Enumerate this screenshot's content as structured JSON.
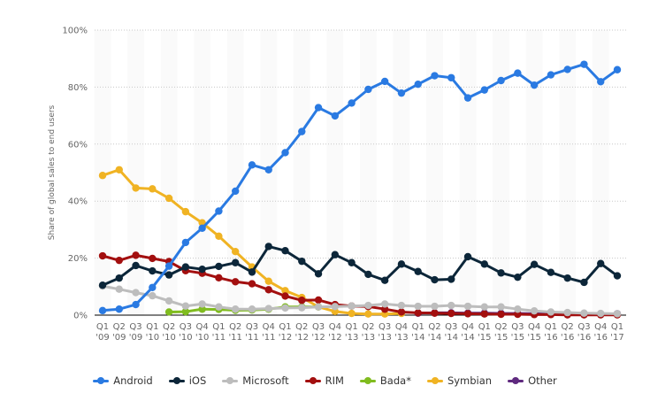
{
  "chart_data": {
    "type": "line",
    "title": "",
    "xlabel": "",
    "ylabel": "Share of global sales to end users",
    "ylim": [
      0,
      100
    ],
    "yticks": [
      "0%",
      "20%",
      "40%",
      "60%",
      "80%",
      "100%"
    ],
    "grid": true,
    "legend_position": "bottom",
    "categories": [
      "Q1 '09",
      "Q2 '09",
      "Q3 '09",
      "Q1 '10",
      "Q2 '10",
      "Q3 '10",
      "Q4 '10",
      "Q1 '11",
      "Q2 '11",
      "Q3 '11",
      "Q4 '11",
      "Q1 '12",
      "Q2 '12",
      "Q3 '12",
      "Q4 '12",
      "Q1 '13",
      "Q2 '13",
      "Q3 '13",
      "Q4 '13",
      "Q1 '14",
      "Q2 '14",
      "Q3 '14",
      "Q4 '14",
      "Q1 '15",
      "Q2 '15",
      "Q3 '15",
      "Q4 '15",
      "Q1 '16",
      "Q2 '16",
      "Q3 '16",
      "Q4 '16",
      "Q1 '17"
    ],
    "series": [
      {
        "name": "Android",
        "color": "#2a7ae2",
        "values": [
          1.6,
          2.1,
          3.7,
          9.7,
          17.2,
          25.5,
          30.5,
          36.5,
          43.5,
          52.7,
          51,
          57,
          64.4,
          72.8,
          69.9,
          74.4,
          79.2,
          82,
          77.9,
          81,
          84,
          83.3,
          76.2,
          79,
          82.3,
          84.9,
          80.7,
          84.3,
          86.2,
          88,
          81.9,
          86.1
        ]
      },
      {
        "name": "iOS",
        "color": "#0c2639",
        "values": [
          10.5,
          13,
          17.4,
          15.5,
          14.1,
          16.9,
          16.1,
          17.1,
          18.4,
          15.1,
          24.1,
          22.6,
          18.9,
          14.5,
          21.2,
          18.4,
          14.3,
          12.2,
          17.9,
          15.3,
          12.4,
          12.6,
          20.5,
          17.9,
          14.8,
          13.3,
          17.8,
          15,
          13,
          11.5,
          18.1,
          13.8
        ]
      },
      {
        "name": "Microsoft",
        "color": "#bdbdbd",
        "values": [
          10.2,
          9.1,
          7.9,
          6.8,
          5,
          3.2,
          3.9,
          2.9,
          2.1,
          2.1,
          2.3,
          2.5,
          2.6,
          2.9,
          3,
          3.2,
          3.4,
          3.9,
          3.4,
          3.1,
          3.1,
          3.4,
          3.1,
          2.9,
          2.9,
          2.1,
          1.5,
          1.1,
          0.9,
          0.7,
          0.6,
          0.5
        ]
      },
      {
        "name": "RIM",
        "color": "#a30f0f",
        "values": [
          20.8,
          19.2,
          21,
          19.9,
          18.8,
          15.6,
          14.7,
          13.1,
          11.7,
          11,
          8.9,
          6.7,
          5.2,
          5.3,
          3.7,
          3.2,
          3,
          2.1,
          1.1,
          0.8,
          0.7,
          0.6,
          0.5,
          0.4,
          0.3,
          0.3,
          0.2,
          0.2,
          0.1,
          0.1,
          0.1,
          0.1
        ]
      },
      {
        "name": "Bada*",
        "color": "#80bc1f",
        "values": [
          null,
          null,
          null,
          null,
          1.1,
          1.2,
          2.1,
          2,
          1.7,
          1.8,
          2.1,
          2.9,
          2.9,
          2.9,
          null,
          null,
          null,
          null,
          null,
          null,
          null,
          null,
          null,
          null,
          null,
          null,
          null,
          null,
          null,
          null,
          null,
          null
        ]
      },
      {
        "name": "Symbian",
        "color": "#f0b323",
        "values": [
          49,
          51,
          44.6,
          44.3,
          41,
          36.3,
          32.4,
          27.7,
          22.3,
          16.9,
          11.9,
          8.6,
          6.2,
          2.9,
          1.3,
          0.6,
          0.4,
          0.4,
          0.6,
          null,
          null,
          null,
          null,
          null,
          null,
          null,
          null,
          null,
          null,
          null,
          null,
          null
        ]
      },
      {
        "name": "Other",
        "color": "#5f2a7f",
        "values": [
          null,
          null,
          null,
          null,
          null,
          null,
          null,
          null,
          null,
          null,
          null,
          null,
          null,
          null,
          null,
          null,
          null,
          null,
          null,
          0.7,
          0.8,
          0.8,
          0.7,
          0.7,
          0.6,
          0.6,
          0.5,
          0.5,
          0.4,
          0.4,
          0.3,
          0.5
        ]
      }
    ]
  }
}
